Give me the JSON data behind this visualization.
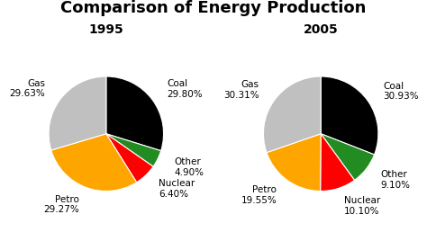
{
  "title": "Comparison of Energy Production",
  "title_fontsize": 13,
  "title_fontweight": "bold",
  "charts": [
    {
      "year": "1995",
      "labels": [
        "Coal",
        "Other",
        "Nuclear",
        "Petro",
        "Gas"
      ],
      "values": [
        29.8,
        4.9,
        6.4,
        29.27,
        29.63
      ],
      "colors": [
        "#000000",
        "#228b22",
        "#ff0000",
        "#ffa500",
        "#c0c0c0"
      ],
      "startangle": 90,
      "counterclock": false,
      "label_positions": [
        {
          "label": "Coal",
          "pct": "29.80%",
          "r": 1.28,
          "ha": "left",
          "va": "center"
        },
        {
          "label": "Other",
          "pct": "4.90%",
          "r": 1.28,
          "ha": "left",
          "va": "center"
        },
        {
          "label": "Nuclear",
          "pct": "6.40%",
          "r": 1.28,
          "ha": "left",
          "va": "center"
        },
        {
          "label": "Petro",
          "pct": "29.27%",
          "r": 1.28,
          "ha": "center",
          "va": "top"
        },
        {
          "label": "Gas",
          "pct": "29.63%",
          "r": 1.28,
          "ha": "right",
          "va": "center"
        }
      ]
    },
    {
      "year": "2005",
      "labels": [
        "Coal",
        "Other",
        "Nuclear",
        "Petro",
        "Gas"
      ],
      "values": [
        30.93,
        9.1,
        10.1,
        19.55,
        30.31
      ],
      "colors": [
        "#000000",
        "#228b22",
        "#ff0000",
        "#ffa500",
        "#c0c0c0"
      ],
      "startangle": 90,
      "counterclock": false,
      "label_positions": [
        {
          "label": "Coal",
          "pct": "30.93%",
          "r": 1.28,
          "ha": "left",
          "va": "center"
        },
        {
          "label": "Other",
          "pct": "9.10%",
          "r": 1.28,
          "ha": "left",
          "va": "center"
        },
        {
          "label": "Nuclear",
          "pct": "10.10%",
          "r": 1.28,
          "ha": "left",
          "va": "center"
        },
        {
          "label": "Petro",
          "pct": "19.55%",
          "r": 1.28,
          "ha": "center",
          "va": "top"
        },
        {
          "label": "Gas",
          "pct": "30.31%",
          "r": 1.28,
          "ha": "right",
          "va": "center"
        }
      ]
    }
  ],
  "background_color": "#ffffff",
  "label_fontsize": 7.5,
  "year_fontsize": 10
}
